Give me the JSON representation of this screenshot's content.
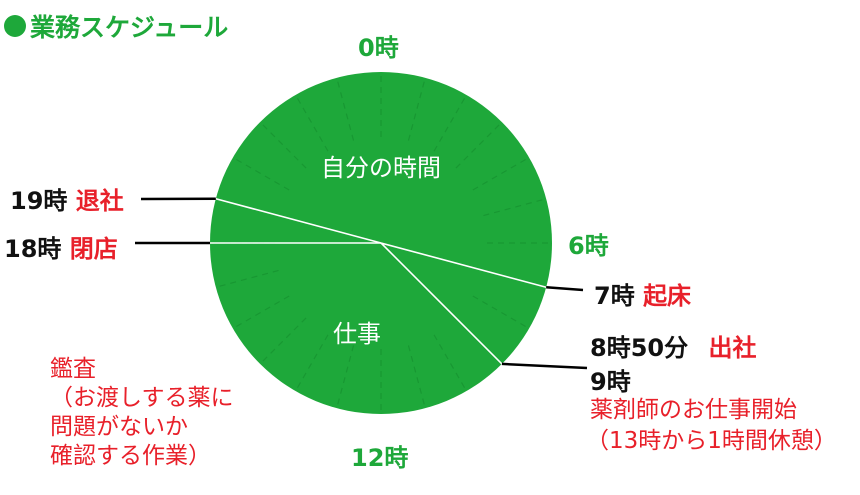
{
  "title": "業務スケジュール",
  "hour_labels": {
    "h0": "0時",
    "h6": "6時",
    "h12": "12時"
  },
  "segments": {
    "private": "自分の時間",
    "work": "仕事"
  },
  "events": {
    "leave": {
      "time": "19時",
      "text": "退社"
    },
    "close": {
      "time": "18時",
      "text": "閉店"
    },
    "wake": {
      "time": "7時",
      "text": "起床"
    },
    "arrive": {
      "time": "8時50分",
      "text": "出社"
    },
    "start": {
      "time": "9時",
      "text": "薬剤師のお仕事開始",
      "note": "（13時から1時間休憩）"
    }
  },
  "audit_note": {
    "line1": "鑑査",
    "line2": "（お渡しする薬に",
    "line3": "問題がないか",
    "line4": "確認する作業）"
  },
  "colors": {
    "green": "#1ea83a",
    "red": "#e8202a",
    "line_black": "#000000",
    "divider": "#ffffff"
  },
  "chart_data": {
    "type": "pie",
    "start_hour": 0,
    "hours_per_cycle": 24,
    "boundaries_hours": [
      7,
      9,
      18,
      19
    ]
  }
}
